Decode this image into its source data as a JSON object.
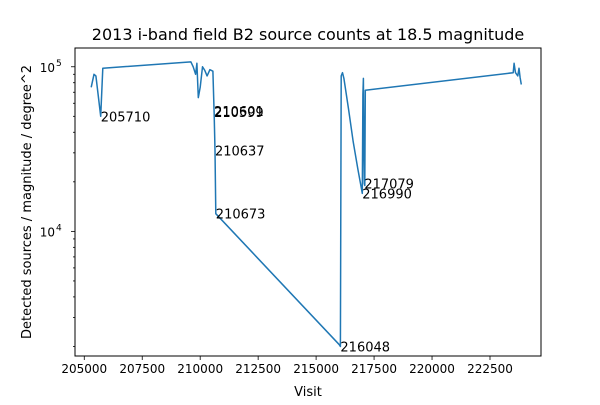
{
  "chart_data": {
    "type": "line",
    "title": "2013 i-band field B2 source counts at 18.5 magnitude",
    "xlabel": "Visit",
    "ylabel": "Detected sources / magnitude / degree^2",
    "xlim": [
      204600,
      224700
    ],
    "ylim": [
      1750,
      130000
    ],
    "yscale": "log",
    "grid": false,
    "line_color": "#1f77b4",
    "x_ticks": [
      {
        "value": 205000,
        "label": "205000"
      },
      {
        "value": 207500,
        "label": "207500"
      },
      {
        "value": 210000,
        "label": "210000"
      },
      {
        "value": 212500,
        "label": "212500"
      },
      {
        "value": 215000,
        "label": "215000"
      },
      {
        "value": 217500,
        "label": "217500"
      },
      {
        "value": 220000,
        "label": "220000"
      },
      {
        "value": 222500,
        "label": "222500"
      }
    ],
    "y_ticks": [
      {
        "value": 10000,
        "base": "10",
        "exp": "4"
      },
      {
        "value": 100000,
        "base": "10",
        "exp": "5"
      }
    ],
    "y_minor_ticks": [
      2000,
      3000,
      4000,
      5000,
      6000,
      7000,
      8000,
      9000,
      20000,
      30000,
      40000,
      50000,
      60000,
      70000,
      80000,
      90000
    ],
    "series": [
      {
        "x": [
          205300,
          205420,
          205500,
          205710,
          205800,
          209600,
          209700,
          209800,
          209860,
          209920,
          210000,
          210100,
          210200,
          210300,
          210420,
          210550,
          210599,
          210601,
          210637,
          210673,
          216000,
          216048,
          216080,
          216140,
          216200,
          216400,
          216600,
          216800,
          216990,
          217020,
          217040,
          217060,
          217079,
          217100,
          217120,
          223500,
          223540,
          223570,
          223600,
          223700,
          223750,
          223800,
          223850
        ],
        "y": [
          75000,
          90000,
          88000,
          50000,
          98000,
          107000,
          100000,
          90000,
          105000,
          65000,
          75000,
          100000,
          95000,
          88000,
          96000,
          94000,
          53000,
          54000,
          31000,
          12800,
          2050,
          2000,
          88000,
          92000,
          85000,
          55000,
          35000,
          24000,
          17000,
          68000,
          85000,
          30000,
          19500,
          19000,
          72000,
          92000,
          105000,
          98000,
          92000,
          88000,
          98000,
          86000,
          78000
        ]
      }
    ],
    "annotations": [
      {
        "x": 205710,
        "y": 50000,
        "text": "205710"
      },
      {
        "x": 210601,
        "y": 54000,
        "text": "210601"
      },
      {
        "x": 210599,
        "y": 53000,
        "text": "210599"
      },
      {
        "x": 210637,
        "y": 31000,
        "text": "210637"
      },
      {
        "x": 210673,
        "y": 12800,
        "text": "210673"
      },
      {
        "x": 216048,
        "y": 2000,
        "text": "216048"
      },
      {
        "x": 217079,
        "y": 19500,
        "text": "217079"
      },
      {
        "x": 216990,
        "y": 17000,
        "text": "216990"
      }
    ]
  }
}
